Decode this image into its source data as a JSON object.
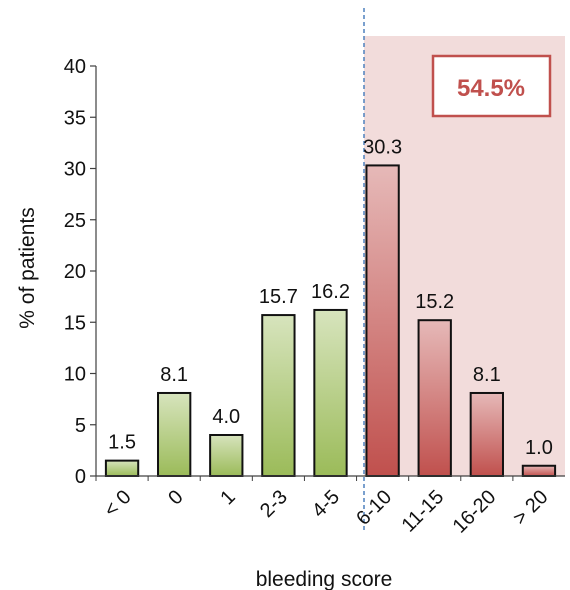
{
  "chart_data": {
    "type": "bar",
    "xlabel": "bleeding score",
    "ylabel": "% of patients",
    "ylim": [
      0,
      40
    ],
    "yticks": [
      0,
      5,
      10,
      15,
      20,
      25,
      30,
      35,
      40
    ],
    "categories": [
      "< 0",
      "0",
      "1",
      "2-3",
      "4-5",
      "6-10",
      "11-15",
      "16-20",
      "> 20"
    ],
    "values": [
      1.5,
      8.1,
      4.0,
      15.7,
      16.2,
      30.3,
      15.2,
      8.1,
      1.0
    ],
    "value_labels": [
      "1.5",
      "8.1",
      "4.0",
      "15.7",
      "16.2",
      "30.3",
      "15.2",
      "8.1",
      "1.0"
    ],
    "bar_groups": [
      "green",
      "green",
      "green",
      "green",
      "green",
      "red",
      "red",
      "red",
      "red"
    ],
    "highlight": {
      "from_category": "6-10",
      "label": "54.5%",
      "color": "#c0504d",
      "shade": "#f2dcdb"
    },
    "colors": {
      "green_fill": "#9bbb59",
      "green_light": "#d7e4bd",
      "red_fill": "#c0504d",
      "red_light": "#e6b9b8",
      "divider": "#4f81bd"
    },
    "grid": false,
    "legend": "none"
  }
}
